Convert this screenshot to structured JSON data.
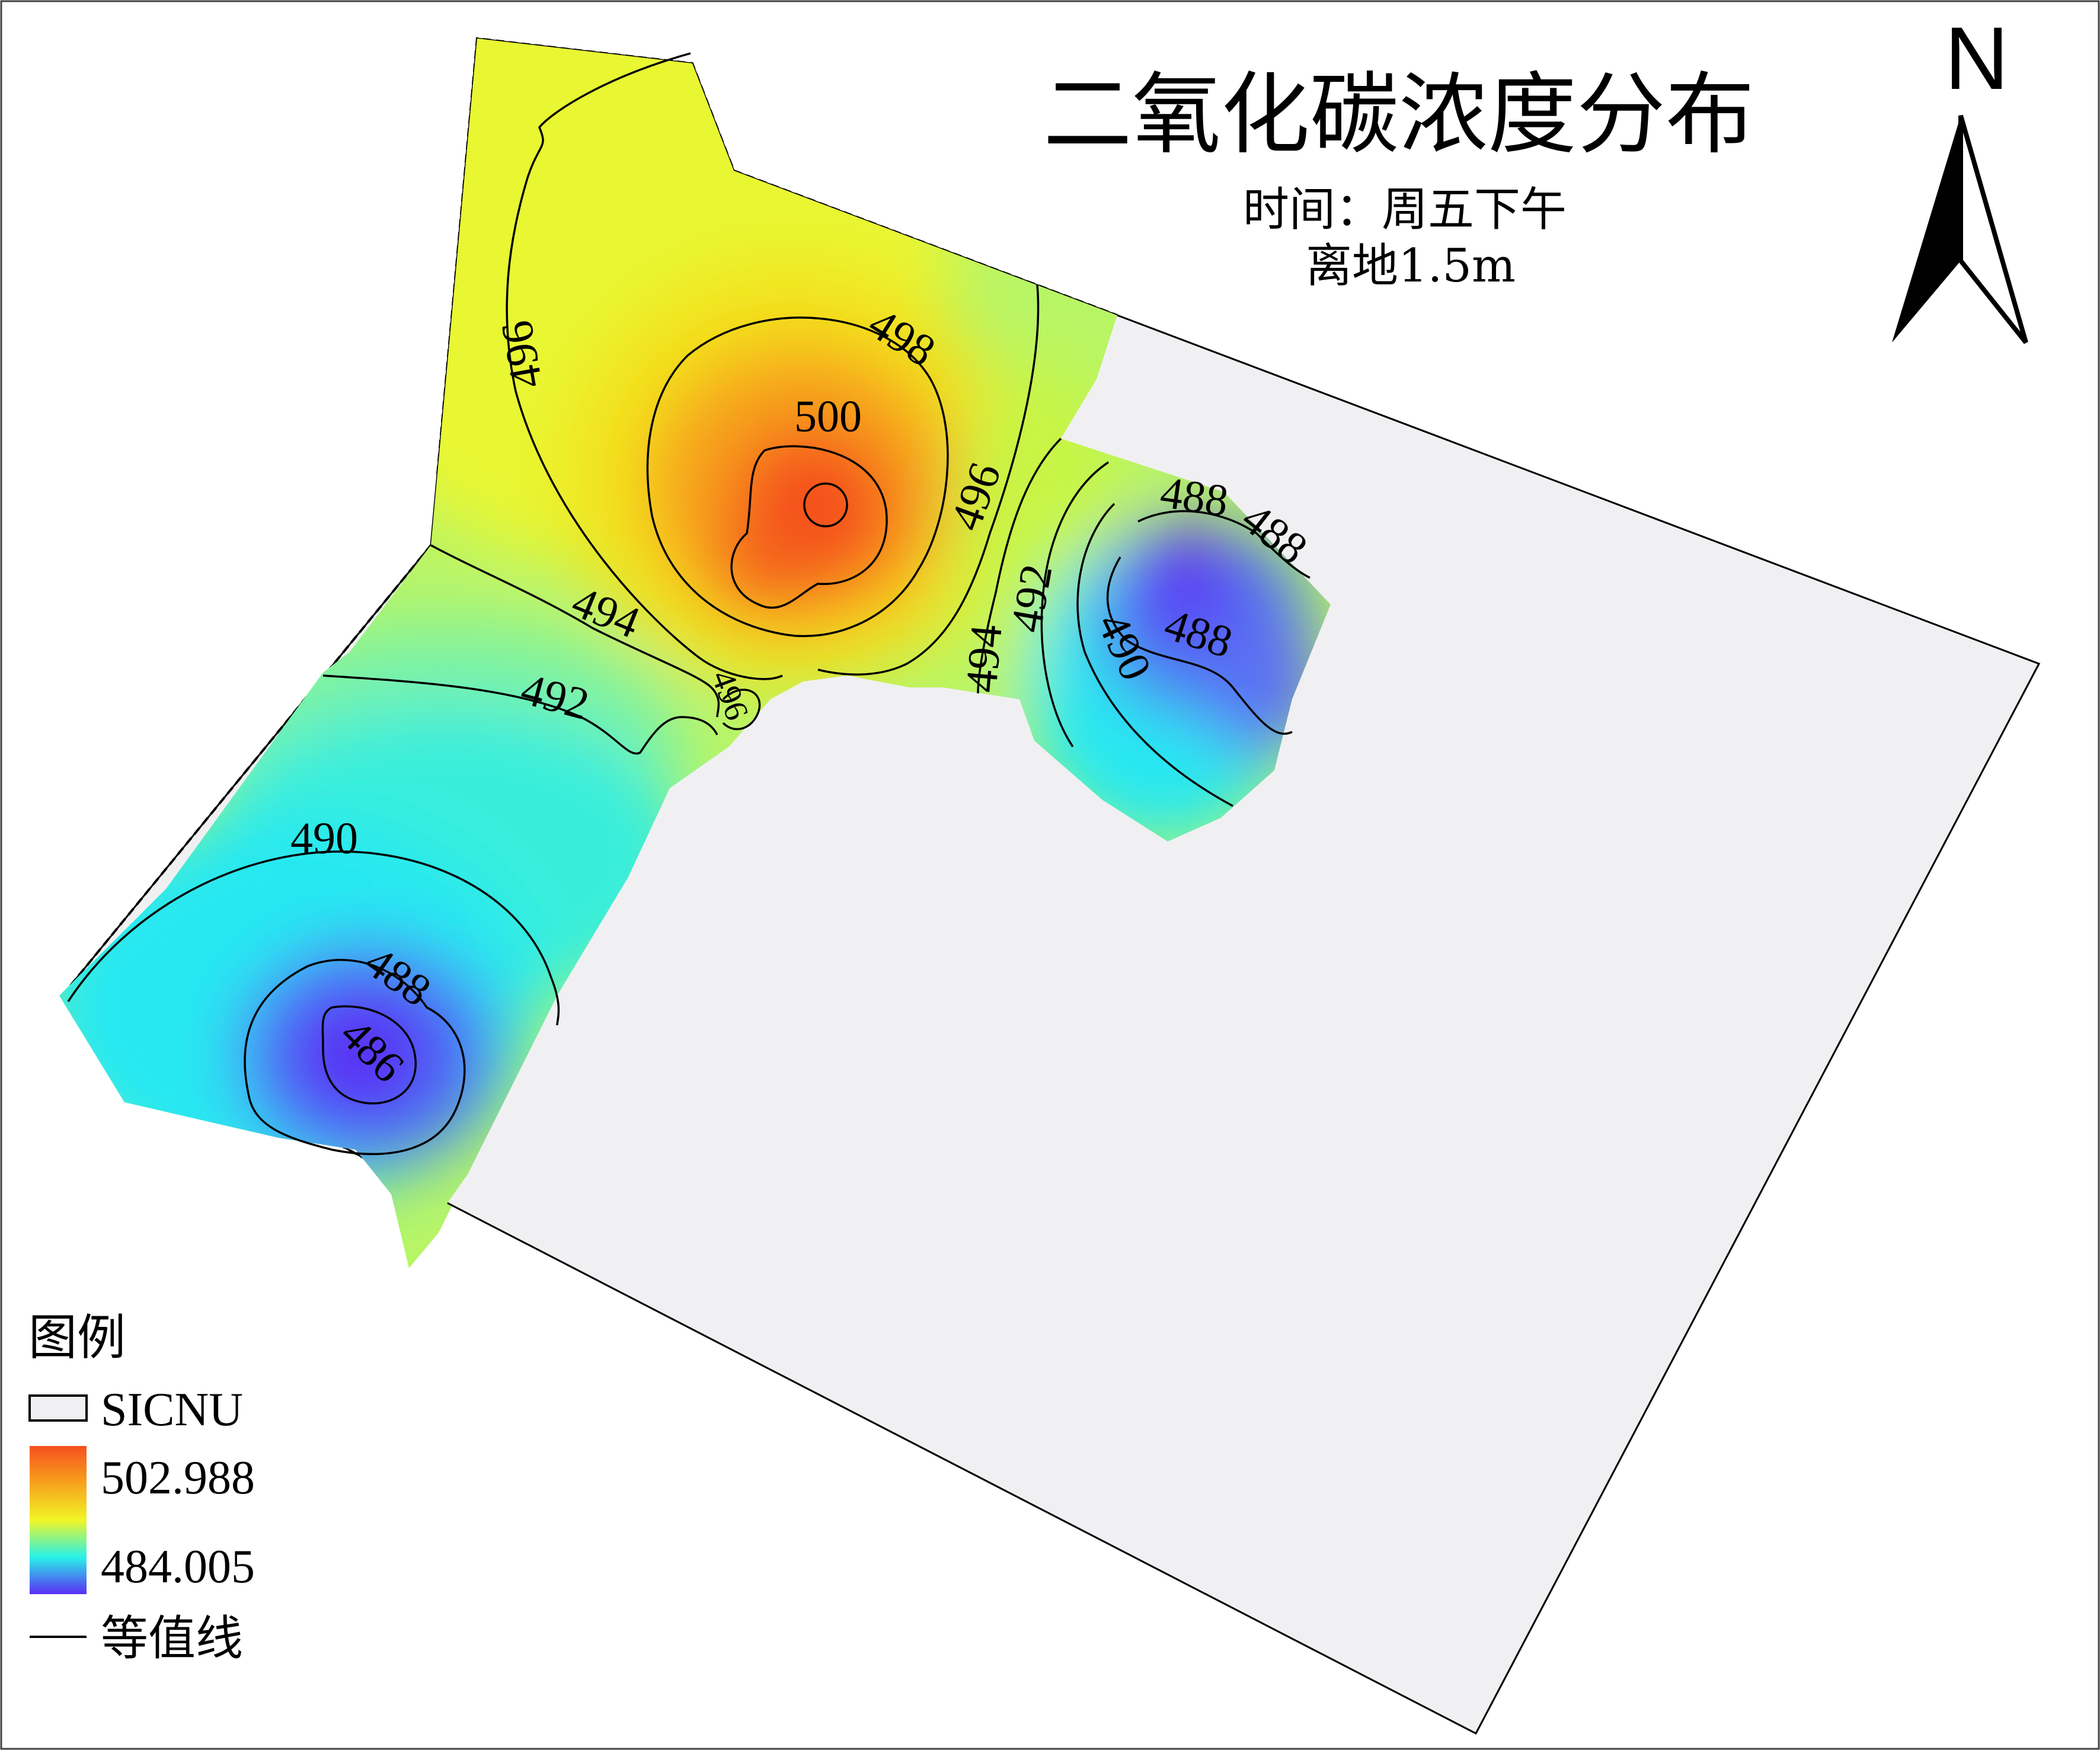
{
  "map": {
    "title": "二氧化碳浓度分布",
    "subtitle_time": "时间：周五下午",
    "subtitle_height": "离地1.5m",
    "north_label": "N"
  },
  "legend": {
    "title": "图例",
    "boundary_label": "SICNU",
    "max_label": "502.988",
    "min_label": "484.005",
    "contour_label": "等值线"
  },
  "contours": [
    {
      "id": "c500",
      "label": "500"
    },
    {
      "id": "c498",
      "label": "498"
    },
    {
      "id": "c496-left",
      "label": "496"
    },
    {
      "id": "c496-right",
      "label": "496"
    },
    {
      "id": "c496-small",
      "label": "496"
    },
    {
      "id": "c494-left",
      "label": "494"
    },
    {
      "id": "c494-right",
      "label": "494"
    },
    {
      "id": "c492-left",
      "label": "492"
    },
    {
      "id": "c492-right",
      "label": "492"
    },
    {
      "id": "c490-left",
      "label": "490"
    },
    {
      "id": "c490-right",
      "label": "490"
    },
    {
      "id": "c488-left",
      "label": "488"
    },
    {
      "id": "c488-right-a",
      "label": "488"
    },
    {
      "id": "c488-right-b",
      "label": "488"
    },
    {
      "id": "c488-right-c",
      "label": "488"
    },
    {
      "id": "c486",
      "label": "486"
    }
  ],
  "colors": {
    "high": "#f5501e",
    "mid_high": "#f7a21d",
    "mid": "#f1f526",
    "mid_low": "#28f2e8",
    "low": "#5a2ef5",
    "boundary_fill": "#f0f0f2"
  }
}
